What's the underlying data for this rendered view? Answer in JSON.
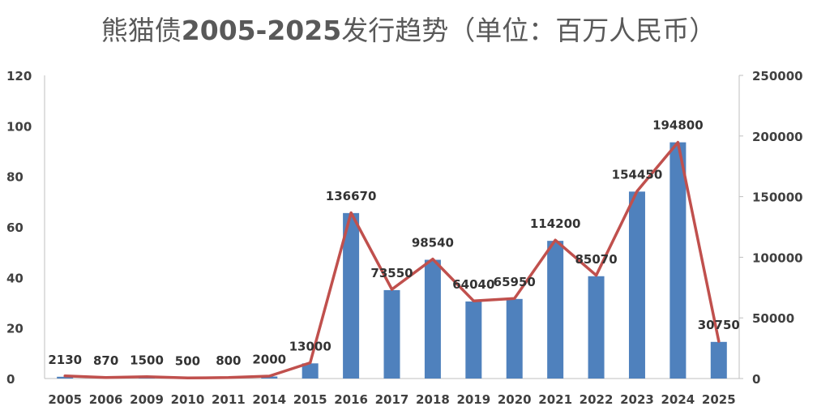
{
  "title": {
    "prefix": "熊猫债",
    "bold": "2005-2025",
    "suffix": "发行趋势（单位：百万人民币）"
  },
  "chart_data": {
    "type": "bar",
    "title": "熊猫债2005-2025发行趋势（单位：百万人民币）",
    "categories": [
      "2005",
      "2006",
      "2009",
      "2010",
      "2011",
      "2014",
      "2015",
      "2016",
      "2017",
      "2018",
      "2019",
      "2020",
      "2021",
      "2022",
      "2023",
      "2024",
      "2025"
    ],
    "series": [
      {
        "name": "bars_left_axis",
        "type": "bar",
        "axis": "left",
        "color": "#4F81BD",
        "values": [
          0.7,
          0.3,
          0.5,
          0.2,
          0.3,
          0.8,
          6,
          65.5,
          35,
          47,
          30.5,
          31.5,
          54.5,
          40.5,
          74,
          93.5,
          14.5
        ]
      },
      {
        "name": "line_right_axis",
        "type": "line",
        "axis": "right",
        "color": "#C0504D",
        "values": [
          2130,
          870,
          1500,
          500,
          800,
          2000,
          13000,
          136670,
          73550,
          98540,
          64040,
          65950,
          114200,
          85070,
          154450,
          194800,
          30750
        ]
      }
    ],
    "data_labels": [
      "2130",
      "870",
      "1500",
      "500",
      "800",
      "2000",
      "13000",
      "136670",
      "73550",
      "98540",
      "64040",
      "65950",
      "114200",
      "85070",
      "154450",
      "194800",
      "30750"
    ],
    "left_axis": {
      "min": 0,
      "max": 120,
      "ticks": [
        "0",
        "20",
        "40",
        "60",
        "80",
        "100",
        "120"
      ]
    },
    "right_axis": {
      "min": 0,
      "max": 250000,
      "ticks": [
        "0",
        "50000",
        "100000",
        "150000",
        "200000",
        "250000"
      ]
    },
    "grid": false,
    "legend": "none"
  }
}
